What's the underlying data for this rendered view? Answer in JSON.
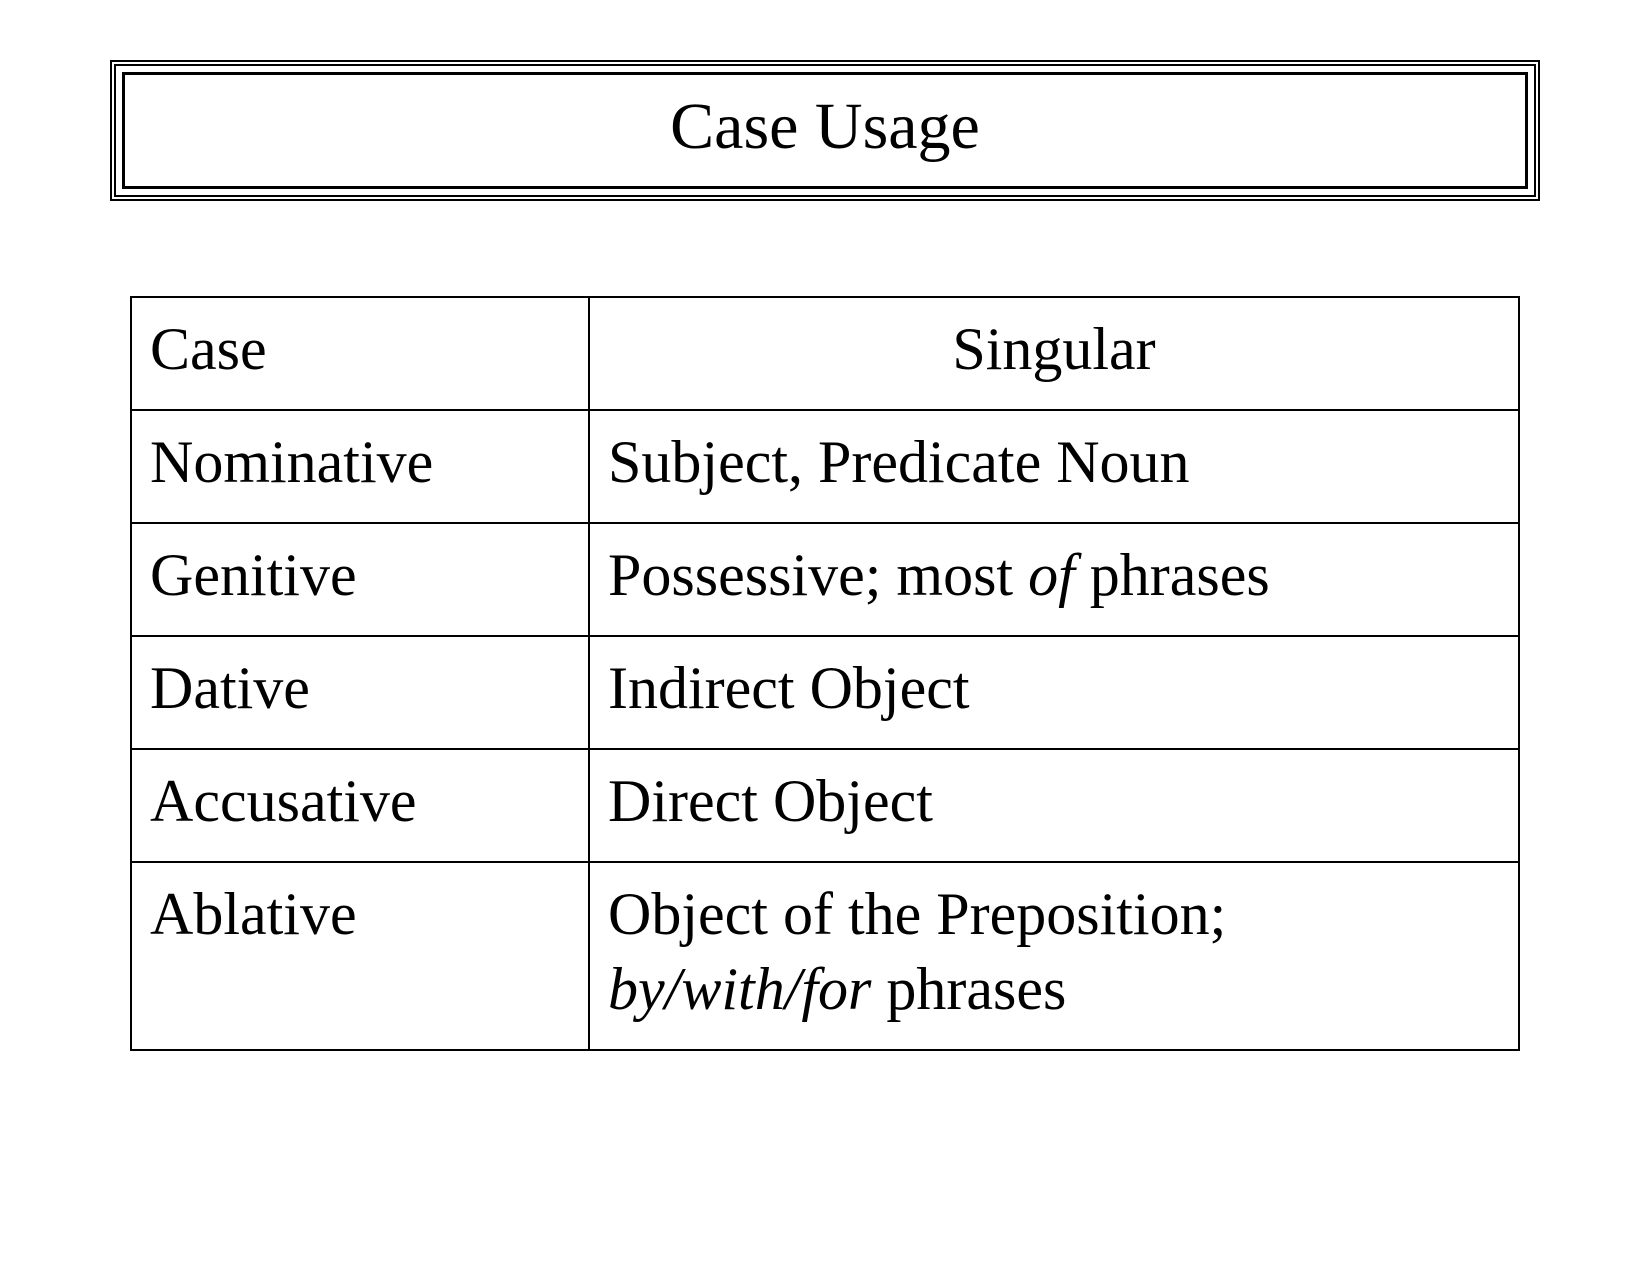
{
  "title": "Case Usage",
  "table": {
    "columns": [
      "Case",
      "Singular"
    ],
    "column_widths_pct": [
      33,
      67
    ],
    "header_align": [
      "left",
      "center"
    ],
    "border_color": "#000000",
    "font_family": "Times New Roman",
    "font_size_pt": 45,
    "rows": [
      {
        "case": "Nominative",
        "usage_pre": "Subject, Predicate Noun",
        "usage_em": "",
        "usage_post": ""
      },
      {
        "case": "Genitive",
        "usage_pre": "Possessive; most ",
        "usage_em": "of ",
        "usage_post": " phrases"
      },
      {
        "case": "Dative",
        "usage_pre": "Indirect Object",
        "usage_em": "",
        "usage_post": ""
      },
      {
        "case": "Accusative",
        "usage_pre": "Direct Object",
        "usage_em": "",
        "usage_post": ""
      },
      {
        "case": "Ablative",
        "usage_pre": "Object of the Preposition; ",
        "usage_em": "by/with/for",
        "usage_post": " phrases"
      }
    ]
  },
  "colors": {
    "background": "#ffffff",
    "text": "#000000",
    "border": "#000000"
  }
}
